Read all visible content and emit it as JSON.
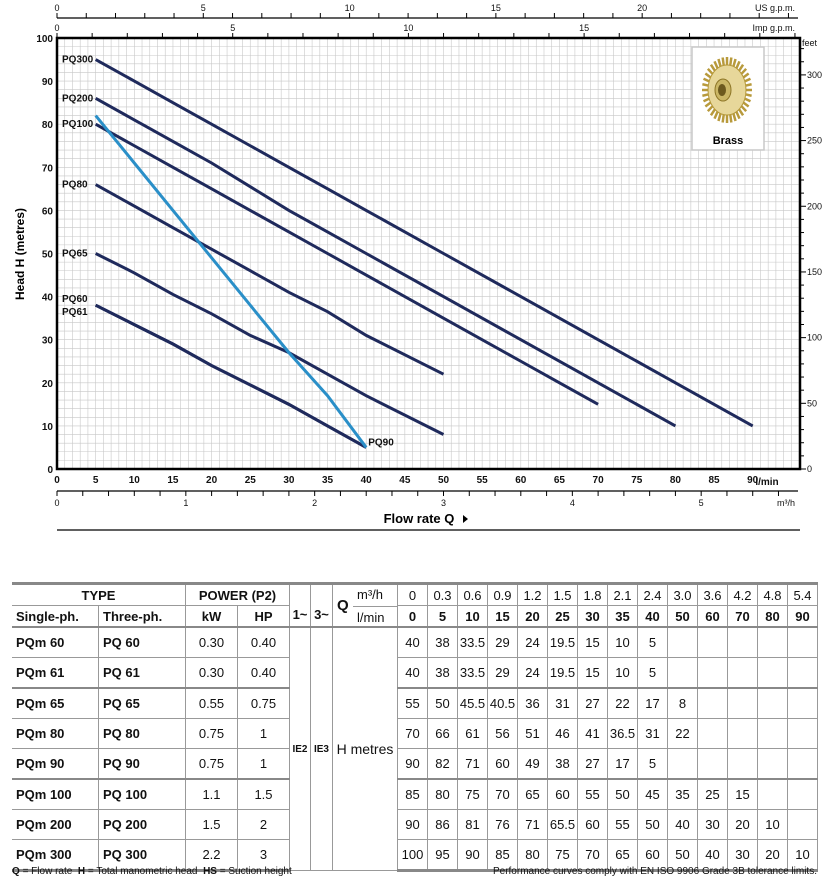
{
  "chart_data": {
    "type": "line",
    "xlabel": "Flow rate Q",
    "ylabel": "Head H (metres)",
    "x_unit": "l/min",
    "xlim": [
      0,
      96
    ],
    "ylim": [
      0,
      100
    ],
    "x_ticks": [
      0,
      5,
      10,
      15,
      20,
      25,
      30,
      35,
      40,
      45,
      50,
      55,
      60,
      65,
      70,
      75,
      80,
      85,
      90
    ],
    "y_ticks": [
      0,
      10,
      20,
      30,
      40,
      50,
      60,
      70,
      80,
      90,
      100
    ],
    "secondary_axes": {
      "us_gpm": {
        "label": "US g.p.m.",
        "ticks": [
          0,
          5,
          10,
          15,
          20
        ]
      },
      "imp_gpm": {
        "label": "Imp g.p.m.",
        "ticks": [
          0,
          5,
          10,
          15
        ]
      },
      "m3h": {
        "label": "m³/h",
        "ticks": [
          0,
          1,
          2,
          3,
          4,
          5
        ]
      },
      "feet": {
        "label": "feet",
        "ticks": [
          0,
          50,
          100,
          150,
          200,
          250,
          300
        ]
      }
    },
    "x_unit_label": "l/min",
    "grid": true,
    "series": [
      {
        "name": "PQ300",
        "color": "#1f2a5c",
        "x": [
          5,
          10,
          15,
          20,
          25,
          30,
          35,
          40,
          50,
          60,
          70,
          80,
          90
        ],
        "y": [
          95,
          90,
          85,
          80,
          75,
          70,
          65,
          60,
          50,
          40,
          30,
          20,
          10
        ]
      },
      {
        "name": "PQ200",
        "color": "#1f2a5c",
        "x": [
          5,
          10,
          15,
          20,
          25,
          30,
          35,
          40,
          50,
          60,
          70,
          80
        ],
        "y": [
          86,
          81,
          76,
          71,
          65.5,
          60,
          55,
          50,
          40,
          30,
          20,
          10
        ]
      },
      {
        "name": "PQ100",
        "color": "#1f2a5c",
        "x": [
          5,
          10,
          15,
          20,
          25,
          30,
          35,
          40,
          50,
          60,
          70
        ],
        "y": [
          80,
          75,
          70,
          65,
          60,
          55,
          50,
          45,
          35,
          25,
          15
        ]
      },
      {
        "name": "PQ80",
        "color": "#1f2a5c",
        "x": [
          5,
          10,
          15,
          20,
          25,
          30,
          35,
          40,
          50
        ],
        "y": [
          66,
          61,
          56,
          51,
          46,
          41,
          36.5,
          31,
          22
        ]
      },
      {
        "name": "PQ65",
        "color": "#1f2a5c",
        "x": [
          5,
          10,
          15,
          20,
          25,
          30,
          35,
          40,
          50
        ],
        "y": [
          50,
          45.5,
          40.5,
          36,
          31,
          27,
          22,
          17,
          8
        ]
      },
      {
        "name": "PQ60",
        "color": "#1f2a5c",
        "x": [
          5,
          10,
          15,
          20,
          25,
          30,
          35,
          40
        ],
        "y": [
          38,
          33.5,
          29,
          24,
          19.5,
          15,
          10,
          5
        ]
      },
      {
        "name": "PQ61",
        "color": "#1f2a5c",
        "x": [
          5,
          10,
          15,
          20,
          25,
          30,
          35,
          40
        ],
        "y": [
          38,
          33.5,
          29,
          24,
          19.5,
          15,
          10,
          5
        ]
      },
      {
        "name": "PQ90",
        "color": "#2a8fc8",
        "x": [
          5,
          10,
          15,
          20,
          25,
          30,
          35,
          40
        ],
        "y": [
          82,
          71,
          60,
          49,
          38,
          27,
          17,
          5
        ]
      }
    ],
    "annotation": "Brass"
  },
  "table": {
    "type_label": "TYPE",
    "power_label": "POWER (P2)",
    "single_label": "Single-ph.",
    "three_label": "Three-ph.",
    "kw_label": "kW",
    "hp_label": "HP",
    "one_phase": "1~",
    "three_phase": "3~",
    "q_label": "Q",
    "m3h_label": "m³/h",
    "lmin_label": "l/min",
    "ie2": "IE2",
    "ie3": "IE3",
    "h_label": "H metres",
    "m3h": [
      "0",
      "0.3",
      "0.6",
      "0.9",
      "1.2",
      "1.5",
      "1.8",
      "2.1",
      "2.4",
      "3.0",
      "3.6",
      "4.2",
      "4.8",
      "5.4"
    ],
    "lmin": [
      "0",
      "5",
      "10",
      "15",
      "20",
      "25",
      "30",
      "35",
      "40",
      "50",
      "60",
      "70",
      "80",
      "90"
    ],
    "rows": [
      {
        "single": "PQm 60",
        "three": "PQ 60",
        "kw": "0.30",
        "hp": "0.40",
        "h": [
          "40",
          "38",
          "33.5",
          "29",
          "24",
          "19.5",
          "15",
          "10",
          "5",
          "",
          "",
          "",
          "",
          ""
        ]
      },
      {
        "single": "PQm 61",
        "three": "PQ 61",
        "kw": "0.30",
        "hp": "0.40",
        "h": [
          "40",
          "38",
          "33.5",
          "29",
          "24",
          "19.5",
          "15",
          "10",
          "5",
          "",
          "",
          "",
          "",
          ""
        ]
      },
      {
        "single": "PQm 65",
        "three": "PQ 65",
        "kw": "0.55",
        "hp": "0.75",
        "h": [
          "55",
          "50",
          "45.5",
          "40.5",
          "36",
          "31",
          "27",
          "22",
          "17",
          "8",
          "",
          "",
          "",
          ""
        ]
      },
      {
        "single": "PQm 80",
        "three": "PQ 80",
        "kw": "0.75",
        "hp": "1",
        "h": [
          "70",
          "66",
          "61",
          "56",
          "51",
          "46",
          "41",
          "36.5",
          "31",
          "22",
          "",
          "",
          "",
          ""
        ]
      },
      {
        "single": "PQm 90",
        "three": "PQ 90",
        "kw": "0.75",
        "hp": "1",
        "h": [
          "90",
          "82",
          "71",
          "60",
          "49",
          "38",
          "27",
          "17",
          "5",
          "",
          "",
          "",
          "",
          ""
        ]
      },
      {
        "single": "PQm 100",
        "three": "PQ 100",
        "kw": "1.1",
        "hp": "1.5",
        "h": [
          "85",
          "80",
          "75",
          "70",
          "65",
          "60",
          "55",
          "50",
          "45",
          "35",
          "25",
          "15",
          "",
          ""
        ]
      },
      {
        "single": "PQm 200",
        "three": "PQ 200",
        "kw": "1.5",
        "hp": "2",
        "h": [
          "90",
          "86",
          "81",
          "76",
          "71",
          "65.5",
          "60",
          "55",
          "50",
          "40",
          "30",
          "20",
          "10",
          ""
        ]
      },
      {
        "single": "PQm 300",
        "three": "PQ 300",
        "kw": "2.2",
        "hp": "3",
        "h": [
          "100",
          "95",
          "90",
          "85",
          "80",
          "75",
          "70",
          "65",
          "60",
          "50",
          "40",
          "30",
          "20",
          "10"
        ]
      }
    ]
  },
  "footer": {
    "legend_q": "Q",
    "legend_q_text": "= Flow rate",
    "legend_h": "H",
    "legend_h_text": "= Total manometric head",
    "legend_hs": "HS",
    "legend_hs_text": "= Suction height",
    "compliance": "Performance curves comply with EN ISO 9906 Grade 3B tolerance limits."
  }
}
